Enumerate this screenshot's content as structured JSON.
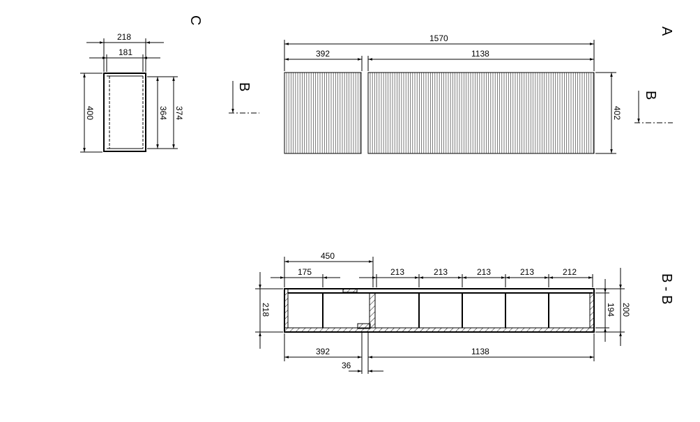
{
  "views": {
    "c": {
      "label": "C",
      "dims": {
        "width_outer": "218",
        "width_inner": "181",
        "height_outer": "400",
        "height_inner": "364",
        "height_mid": "374"
      }
    },
    "a": {
      "label": "A",
      "dims": {
        "total": "1570",
        "left": "392",
        "right": "1138",
        "height": "402"
      }
    },
    "section_marker": {
      "label": "B"
    },
    "bb": {
      "label": "B - B",
      "dims": {
        "left_span": "450",
        "first": "175",
        "compartments": [
          "213",
          "213",
          "213",
          "213",
          "212"
        ],
        "height": "218",
        "inner_height": "194",
        "outer_height": "200",
        "left": "392",
        "right": "1138",
        "gap": "36"
      }
    }
  }
}
